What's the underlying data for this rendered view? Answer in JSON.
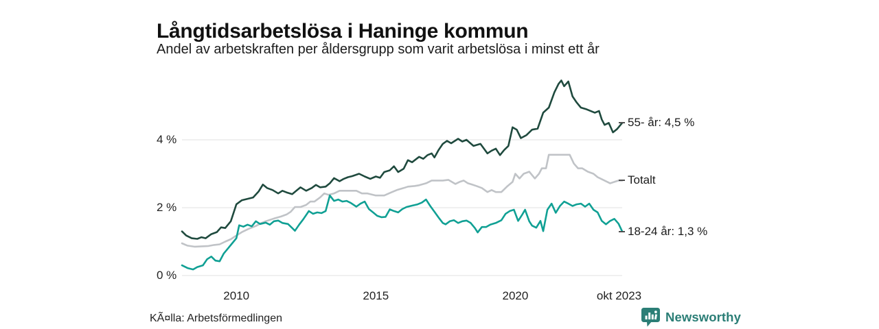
{
  "header": {
    "title": "Långtidsarbetslösa i Haninge kommun",
    "subtitle": "Andel av arbetskraften per åldersgrupp som varit arbetslösa i minst ett år"
  },
  "footer": {
    "source": "KÃ¤lla: Arbetsförmedlingen",
    "brand": "Newsworthy",
    "brand_color": "#2b7e76",
    "brand_icon": "speech-bubble-with-bar-chart"
  },
  "chart_data": {
    "type": "line",
    "unit": "%",
    "grid": true,
    "grid_color": "#e2e2e2",
    "background": "#ffffff",
    "x_axis": {
      "range": [
        2008.05,
        2023.83
      ],
      "ticks": [
        {
          "label": "2010",
          "x": 2010
        },
        {
          "label": "2015",
          "x": 2015
        },
        {
          "label": "2020",
          "x": 2020
        },
        {
          "label": "okt 2023",
          "x": 2023.72
        }
      ]
    },
    "y_axis": {
      "range": [
        0,
        5.9
      ],
      "ticks": [
        {
          "label": "0 %",
          "value": 0
        },
        {
          "label": "2 %",
          "value": 2
        },
        {
          "label": "4 %",
          "value": 4
        }
      ]
    },
    "series": [
      {
        "id": "totalt",
        "name": "Totalt",
        "end_label": "Totalt",
        "color": "#c0c3c7",
        "points": [
          [
            2008.05,
            0.95
          ],
          [
            2008.25,
            0.88
          ],
          [
            2008.5,
            0.85
          ],
          [
            2008.75,
            0.86
          ],
          [
            2009.0,
            0.87
          ],
          [
            2009.2,
            0.9
          ],
          [
            2009.4,
            0.92
          ],
          [
            2009.6,
            1.0
          ],
          [
            2009.8,
            1.07
          ],
          [
            2010.0,
            1.18
          ],
          [
            2010.2,
            1.28
          ],
          [
            2010.45,
            1.38
          ],
          [
            2010.7,
            1.46
          ],
          [
            2010.9,
            1.55
          ],
          [
            2011.05,
            1.6
          ],
          [
            2011.35,
            1.68
          ],
          [
            2011.6,
            1.74
          ],
          [
            2011.8,
            1.8
          ],
          [
            2011.95,
            1.88
          ],
          [
            2012.1,
            2.02
          ],
          [
            2012.3,
            2.02
          ],
          [
            2012.5,
            2.08
          ],
          [
            2012.65,
            2.18
          ],
          [
            2012.8,
            2.18
          ],
          [
            2013.0,
            2.3
          ],
          [
            2013.15,
            2.42
          ],
          [
            2013.3,
            2.38
          ],
          [
            2013.5,
            2.42
          ],
          [
            2013.7,
            2.5
          ],
          [
            2013.9,
            2.5
          ],
          [
            2014.1,
            2.5
          ],
          [
            2014.3,
            2.5
          ],
          [
            2014.5,
            2.42
          ],
          [
            2014.7,
            2.42
          ],
          [
            2015.0,
            2.36
          ],
          [
            2015.3,
            2.36
          ],
          [
            2015.55,
            2.45
          ],
          [
            2015.75,
            2.52
          ],
          [
            2016.0,
            2.58
          ],
          [
            2016.15,
            2.62
          ],
          [
            2016.4,
            2.64
          ],
          [
            2016.55,
            2.66
          ],
          [
            2016.8,
            2.72
          ],
          [
            2017.0,
            2.8
          ],
          [
            2017.2,
            2.8
          ],
          [
            2017.4,
            2.8
          ],
          [
            2017.6,
            2.82
          ],
          [
            2017.85,
            2.7
          ],
          [
            2018.0,
            2.76
          ],
          [
            2018.15,
            2.8
          ],
          [
            2018.3,
            2.72
          ],
          [
            2018.45,
            2.68
          ],
          [
            2018.6,
            2.64
          ],
          [
            2018.8,
            2.58
          ],
          [
            2019.0,
            2.46
          ],
          [
            2019.15,
            2.52
          ],
          [
            2019.3,
            2.46
          ],
          [
            2019.5,
            2.46
          ],
          [
            2019.7,
            2.62
          ],
          [
            2019.9,
            2.76
          ],
          [
            2020.0,
            3.0
          ],
          [
            2020.15,
            2.86
          ],
          [
            2020.3,
            3.0
          ],
          [
            2020.5,
            3.06
          ],
          [
            2020.7,
            2.86
          ],
          [
            2020.85,
            3.0
          ],
          [
            2020.95,
            3.16
          ],
          [
            2021.1,
            3.16
          ],
          [
            2021.2,
            3.56
          ],
          [
            2021.4,
            3.56
          ],
          [
            2021.6,
            3.56
          ],
          [
            2021.8,
            3.56
          ],
          [
            2021.95,
            3.56
          ],
          [
            2022.1,
            3.3
          ],
          [
            2022.25,
            3.16
          ],
          [
            2022.4,
            3.16
          ],
          [
            2022.6,
            3.06
          ],
          [
            2022.8,
            3.0
          ],
          [
            2022.95,
            2.9
          ],
          [
            2023.1,
            2.84
          ],
          [
            2023.25,
            2.78
          ],
          [
            2023.4,
            2.72
          ],
          [
            2023.55,
            2.76
          ],
          [
            2023.7,
            2.8
          ],
          [
            2023.83,
            2.8
          ]
        ]
      },
      {
        "id": "55",
        "name": "55- år",
        "end_label": "55- år: 4,5 %",
        "color": "#1f4a3e",
        "points": [
          [
            2008.05,
            1.3
          ],
          [
            2008.2,
            1.18
          ],
          [
            2008.4,
            1.1
          ],
          [
            2008.6,
            1.08
          ],
          [
            2008.75,
            1.13
          ],
          [
            2008.9,
            1.1
          ],
          [
            2009.1,
            1.22
          ],
          [
            2009.3,
            1.28
          ],
          [
            2009.45,
            1.42
          ],
          [
            2009.6,
            1.4
          ],
          [
            2009.8,
            1.6
          ],
          [
            2010.0,
            2.1
          ],
          [
            2010.2,
            2.22
          ],
          [
            2010.4,
            2.26
          ],
          [
            2010.6,
            2.3
          ],
          [
            2010.8,
            2.48
          ],
          [
            2010.95,
            2.68
          ],
          [
            2011.1,
            2.58
          ],
          [
            2011.3,
            2.52
          ],
          [
            2011.5,
            2.42
          ],
          [
            2011.65,
            2.5
          ],
          [
            2011.8,
            2.45
          ],
          [
            2012.0,
            2.4
          ],
          [
            2012.15,
            2.5
          ],
          [
            2012.3,
            2.6
          ],
          [
            2012.5,
            2.5
          ],
          [
            2012.7,
            2.58
          ],
          [
            2012.85,
            2.67
          ],
          [
            2013.0,
            2.6
          ],
          [
            2013.2,
            2.62
          ],
          [
            2013.35,
            2.72
          ],
          [
            2013.5,
            2.87
          ],
          [
            2013.7,
            2.78
          ],
          [
            2013.85,
            2.85
          ],
          [
            2014.0,
            2.9
          ],
          [
            2014.15,
            2.93
          ],
          [
            2014.4,
            3.0
          ],
          [
            2014.6,
            2.92
          ],
          [
            2014.8,
            2.85
          ],
          [
            2015.0,
            2.92
          ],
          [
            2015.15,
            2.88
          ],
          [
            2015.3,
            3.05
          ],
          [
            2015.5,
            3.1
          ],
          [
            2015.65,
            3.22
          ],
          [
            2015.8,
            3.05
          ],
          [
            2016.0,
            3.15
          ],
          [
            2016.15,
            3.4
          ],
          [
            2016.3,
            3.34
          ],
          [
            2016.55,
            3.5
          ],
          [
            2016.7,
            3.44
          ],
          [
            2016.85,
            3.55
          ],
          [
            2017.0,
            3.6
          ],
          [
            2017.1,
            3.48
          ],
          [
            2017.25,
            3.7
          ],
          [
            2017.4,
            3.88
          ],
          [
            2017.55,
            3.97
          ],
          [
            2017.7,
            3.9
          ],
          [
            2017.95,
            4.03
          ],
          [
            2018.1,
            3.95
          ],
          [
            2018.25,
            4.0
          ],
          [
            2018.5,
            3.82
          ],
          [
            2018.75,
            3.88
          ],
          [
            2019.0,
            3.6
          ],
          [
            2019.15,
            3.68
          ],
          [
            2019.3,
            3.74
          ],
          [
            2019.45,
            3.55
          ],
          [
            2019.6,
            3.7
          ],
          [
            2019.75,
            3.82
          ],
          [
            2019.9,
            4.37
          ],
          [
            2020.05,
            4.3
          ],
          [
            2020.2,
            4.05
          ],
          [
            2020.4,
            4.14
          ],
          [
            2020.6,
            4.3
          ],
          [
            2020.8,
            4.33
          ],
          [
            2021.0,
            4.8
          ],
          [
            2021.2,
            4.95
          ],
          [
            2021.4,
            5.4
          ],
          [
            2021.55,
            5.65
          ],
          [
            2021.65,
            5.75
          ],
          [
            2021.75,
            5.58
          ],
          [
            2021.9,
            5.72
          ],
          [
            2022.05,
            5.28
          ],
          [
            2022.2,
            5.1
          ],
          [
            2022.35,
            4.95
          ],
          [
            2022.55,
            4.9
          ],
          [
            2022.7,
            4.85
          ],
          [
            2022.85,
            4.8
          ],
          [
            2023.0,
            4.85
          ],
          [
            2023.1,
            4.6
          ],
          [
            2023.2,
            4.44
          ],
          [
            2023.35,
            4.5
          ],
          [
            2023.5,
            4.22
          ],
          [
            2023.65,
            4.32
          ],
          [
            2023.83,
            4.5
          ]
        ]
      },
      {
        "id": "18-24",
        "name": "18-24 år",
        "end_label": "18-24 år: 1,3 %",
        "color": "#10a094",
        "points": [
          [
            2008.05,
            0.3
          ],
          [
            2008.25,
            0.22
          ],
          [
            2008.45,
            0.18
          ],
          [
            2008.6,
            0.25
          ],
          [
            2008.8,
            0.3
          ],
          [
            2008.95,
            0.48
          ],
          [
            2009.1,
            0.56
          ],
          [
            2009.25,
            0.44
          ],
          [
            2009.4,
            0.42
          ],
          [
            2009.55,
            0.65
          ],
          [
            2009.7,
            0.8
          ],
          [
            2009.85,
            0.95
          ],
          [
            2010.0,
            1.1
          ],
          [
            2010.1,
            1.48
          ],
          [
            2010.25,
            1.44
          ],
          [
            2010.4,
            1.5
          ],
          [
            2010.55,
            1.45
          ],
          [
            2010.7,
            1.6
          ],
          [
            2010.85,
            1.52
          ],
          [
            2011.05,
            1.56
          ],
          [
            2011.2,
            1.5
          ],
          [
            2011.35,
            1.6
          ],
          [
            2011.5,
            1.62
          ],
          [
            2011.65,
            1.55
          ],
          [
            2011.85,
            1.52
          ],
          [
            2012.0,
            1.4
          ],
          [
            2012.1,
            1.32
          ],
          [
            2012.25,
            1.5
          ],
          [
            2012.4,
            1.66
          ],
          [
            2012.6,
            1.9
          ],
          [
            2012.75,
            1.82
          ],
          [
            2012.9,
            1.86
          ],
          [
            2013.05,
            1.84
          ],
          [
            2013.2,
            1.9
          ],
          [
            2013.35,
            2.36
          ],
          [
            2013.5,
            2.2
          ],
          [
            2013.65,
            2.24
          ],
          [
            2013.8,
            2.18
          ],
          [
            2013.95,
            2.2
          ],
          [
            2014.1,
            2.14
          ],
          [
            2014.3,
            2.03
          ],
          [
            2014.45,
            2.12
          ],
          [
            2014.6,
            2.18
          ],
          [
            2014.75,
            1.96
          ],
          [
            2014.9,
            1.86
          ],
          [
            2015.05,
            1.76
          ],
          [
            2015.2,
            1.72
          ],
          [
            2015.35,
            1.73
          ],
          [
            2015.5,
            1.95
          ],
          [
            2015.65,
            1.9
          ],
          [
            2015.8,
            1.86
          ],
          [
            2015.95,
            1.96
          ],
          [
            2016.1,
            2.02
          ],
          [
            2016.3,
            2.06
          ],
          [
            2016.5,
            2.1
          ],
          [
            2016.65,
            2.15
          ],
          [
            2016.8,
            2.24
          ],
          [
            2016.95,
            2.05
          ],
          [
            2017.1,
            1.88
          ],
          [
            2017.25,
            1.71
          ],
          [
            2017.4,
            1.55
          ],
          [
            2017.5,
            1.51
          ],
          [
            2017.65,
            1.6
          ],
          [
            2017.8,
            1.63
          ],
          [
            2017.95,
            1.55
          ],
          [
            2018.1,
            1.6
          ],
          [
            2018.25,
            1.62
          ],
          [
            2018.4,
            1.55
          ],
          [
            2018.55,
            1.4
          ],
          [
            2018.65,
            1.27
          ],
          [
            2018.8,
            1.43
          ],
          [
            2018.95,
            1.43
          ],
          [
            2019.1,
            1.5
          ],
          [
            2019.3,
            1.55
          ],
          [
            2019.5,
            1.63
          ],
          [
            2019.65,
            1.82
          ],
          [
            2019.8,
            1.9
          ],
          [
            2019.95,
            1.94
          ],
          [
            2020.1,
            1.61
          ],
          [
            2020.25,
            1.8
          ],
          [
            2020.35,
            1.94
          ],
          [
            2020.5,
            1.6
          ],
          [
            2020.6,
            1.47
          ],
          [
            2020.75,
            1.41
          ],
          [
            2020.9,
            1.61
          ],
          [
            2021.0,
            1.31
          ],
          [
            2021.15,
            1.94
          ],
          [
            2021.3,
            2.12
          ],
          [
            2021.45,
            1.85
          ],
          [
            2021.6,
            2.05
          ],
          [
            2021.75,
            2.18
          ],
          [
            2021.9,
            2.12
          ],
          [
            2022.05,
            2.05
          ],
          [
            2022.2,
            2.1
          ],
          [
            2022.35,
            2.12
          ],
          [
            2022.5,
            2.03
          ],
          [
            2022.65,
            2.12
          ],
          [
            2022.8,
            1.94
          ],
          [
            2022.95,
            1.86
          ],
          [
            2023.1,
            1.61
          ],
          [
            2023.25,
            1.51
          ],
          [
            2023.4,
            1.61
          ],
          [
            2023.55,
            1.67
          ],
          [
            2023.7,
            1.53
          ],
          [
            2023.83,
            1.3
          ]
        ]
      }
    ]
  }
}
